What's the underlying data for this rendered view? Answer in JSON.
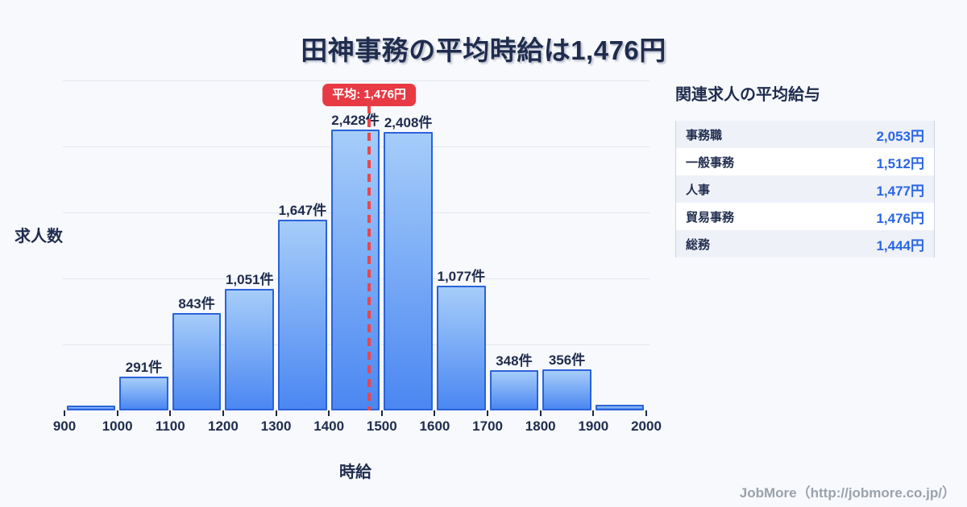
{
  "title": "田神事務の平均時給は1,476円",
  "colors": {
    "background": "#f8f9fc",
    "ink": "#1f2c4e",
    "bar_border": "#2a63d9",
    "bar_gradient_top": "#a6cdf9",
    "bar_gradient_bottom": "#4b87f2",
    "gridline": "#e2e7f0",
    "mean_red": "#e83a44",
    "mean_red_line": "#ee4448",
    "value_blue": "#2966e3",
    "row_tint": "#eef1f8",
    "panel_border": "#ccd4e3",
    "footer_gray": "#9aa2ac"
  },
  "chart_data": {
    "type": "bar",
    "title": "田神事務の平均時給は1,476円",
    "xlabel": "時給",
    "ylabel": "求人数",
    "xlim": [
      900,
      2000
    ],
    "ylim": [
      0,
      2850
    ],
    "grid": true,
    "x_ticks": [
      900,
      1000,
      1100,
      1200,
      1300,
      1400,
      1500,
      1600,
      1700,
      1800,
      1900,
      2000
    ],
    "bins": [
      {
        "from": 900,
        "to": 1000,
        "count": 40,
        "label": ""
      },
      {
        "from": 1000,
        "to": 1100,
        "count": 291,
        "label": "291件"
      },
      {
        "from": 1100,
        "to": 1200,
        "count": 843,
        "label": "843件"
      },
      {
        "from": 1200,
        "to": 1300,
        "count": 1051,
        "label": "1,051件"
      },
      {
        "from": 1300,
        "to": 1400,
        "count": 1647,
        "label": "1,647件"
      },
      {
        "from": 1400,
        "to": 1500,
        "count": 2428,
        "label": "2,428件"
      },
      {
        "from": 1500,
        "to": 1600,
        "count": 2408,
        "label": "2,408件"
      },
      {
        "from": 1600,
        "to": 1700,
        "count": 1077,
        "label": "1,077件"
      },
      {
        "from": 1700,
        "to": 1800,
        "count": 348,
        "label": "348件"
      },
      {
        "from": 1800,
        "to": 1900,
        "count": 356,
        "label": "356件"
      },
      {
        "from": 1900,
        "to": 2000,
        "count": 50,
        "label": ""
      }
    ],
    "mean_line": {
      "value": 1476,
      "label": "平均: 1,476円"
    }
  },
  "side_panel": {
    "title": "関連求人の平均給与",
    "rows": [
      {
        "label": "事務職",
        "value": "2,053円"
      },
      {
        "label": "一般事務",
        "value": "1,512円"
      },
      {
        "label": "人事",
        "value": "1,477円"
      },
      {
        "label": "貿易事務",
        "value": "1,476円"
      },
      {
        "label": "総務",
        "value": "1,444円"
      }
    ]
  },
  "footer": {
    "credit": "JobMore（http://jobmore.co.jp/）"
  }
}
